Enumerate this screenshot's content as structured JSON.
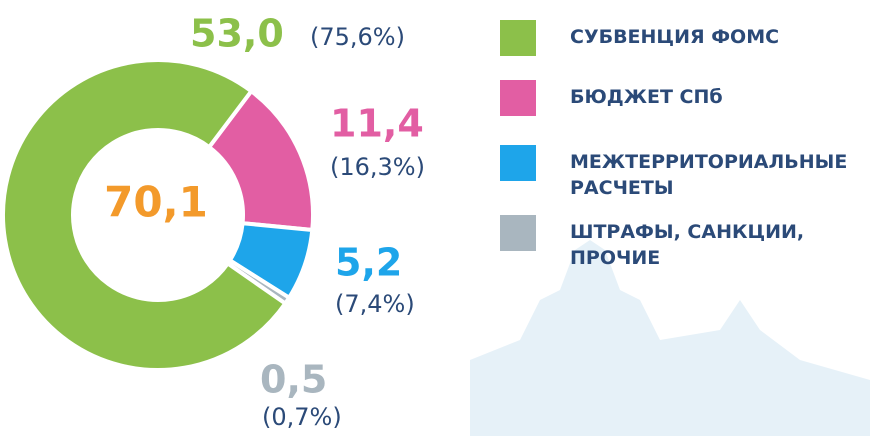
{
  "chart_data": {
    "type": "donut",
    "categories": [
      "СУБВЕНЦИЯ ФОМС",
      "БЮДЖЕТ СПб",
      "МЕЖТЕРРИТОРИАЛЬНЫЕ РАСЧЕТЫ",
      "ШТРАФЫ, САНКЦИИ, ПРОЧИЕ"
    ],
    "values": [
      53.0,
      11.4,
      5.2,
      0.5
    ],
    "value_labels": [
      "53,0",
      "11,4",
      "5,2",
      "0,5"
    ],
    "shares": [
      75.6,
      16.3,
      7.4,
      0.7
    ],
    "share_labels": [
      "(75,6%)",
      "(16,3%)",
      "(7,4%)",
      "(0,7%)"
    ],
    "colors": [
      "#8cc04a",
      "#e25ea3",
      "#1ea5ea",
      "#a9b6bf"
    ],
    "total": {
      "value": 70.1,
      "label": "70,1"
    }
  }
}
